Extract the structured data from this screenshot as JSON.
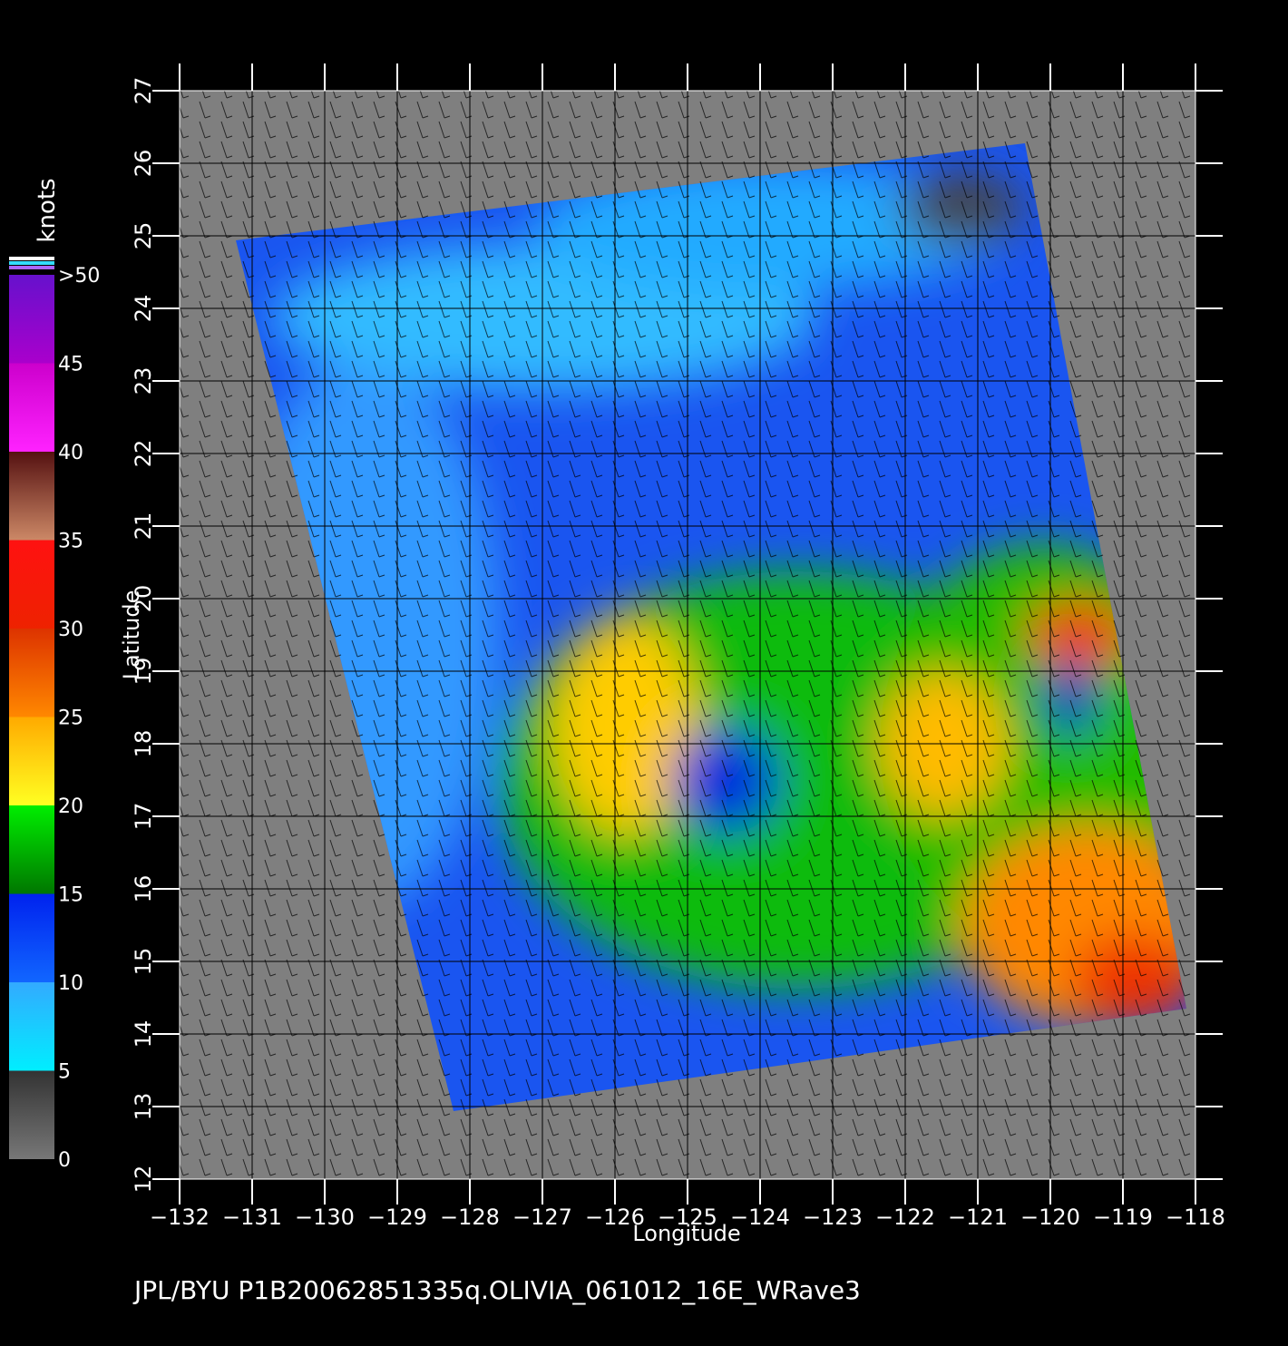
{
  "map": {
    "xlabel": "Longitude",
    "ylabel": "Latitude",
    "xlim": [
      -132,
      -118
    ],
    "ylim": [
      12,
      27
    ],
    "xticks": [
      {
        "value": -132,
        "label": "−132"
      },
      {
        "value": -131,
        "label": "−131"
      },
      {
        "value": -130,
        "label": "−130"
      },
      {
        "value": -129,
        "label": "−129"
      },
      {
        "value": -128,
        "label": "−128"
      },
      {
        "value": -127,
        "label": "−127"
      },
      {
        "value": -126,
        "label": "−126"
      },
      {
        "value": -125,
        "label": "−125"
      },
      {
        "value": -124,
        "label": "−124"
      },
      {
        "value": -123,
        "label": "−123"
      },
      {
        "value": -122,
        "label": "−122"
      },
      {
        "value": -121,
        "label": "−121"
      },
      {
        "value": -120,
        "label": "−120"
      },
      {
        "value": -119,
        "label": "−119"
      },
      {
        "value": -118,
        "label": "−118"
      }
    ],
    "yticks": [
      12,
      13,
      14,
      15,
      16,
      17,
      18,
      19,
      20,
      21,
      22,
      23,
      24,
      25,
      26,
      27
    ]
  },
  "colorbar": {
    "title": "knots",
    "lim": [
      0,
      50
    ],
    "ticks": [
      0,
      5,
      10,
      15,
      20,
      25,
      30,
      35,
      40,
      45,
      {
        "value": 50,
        "label": ">50"
      }
    ],
    "colors": [
      [
        "#777777",
        "#333333"
      ],
      [
        "#00eeff",
        "#33aaff"
      ],
      [
        "#1166ff",
        "#0022ee"
      ],
      [
        "#007700",
        "#00ee00"
      ],
      [
        "#ffff22",
        "#ffaa00"
      ],
      [
        "#ff8800",
        "#dd3300"
      ],
      [
        "#ee2200",
        "#ff1111"
      ],
      [
        "#cc8866",
        "#551111"
      ],
      [
        "#ff22ff",
        "#cc00cc"
      ],
      [
        "#aa00cc",
        "#6611cc"
      ]
    ]
  },
  "footer": "JPL/BYU  P1B20062851335q.OLIVIA_061012_16E_WRave3"
}
